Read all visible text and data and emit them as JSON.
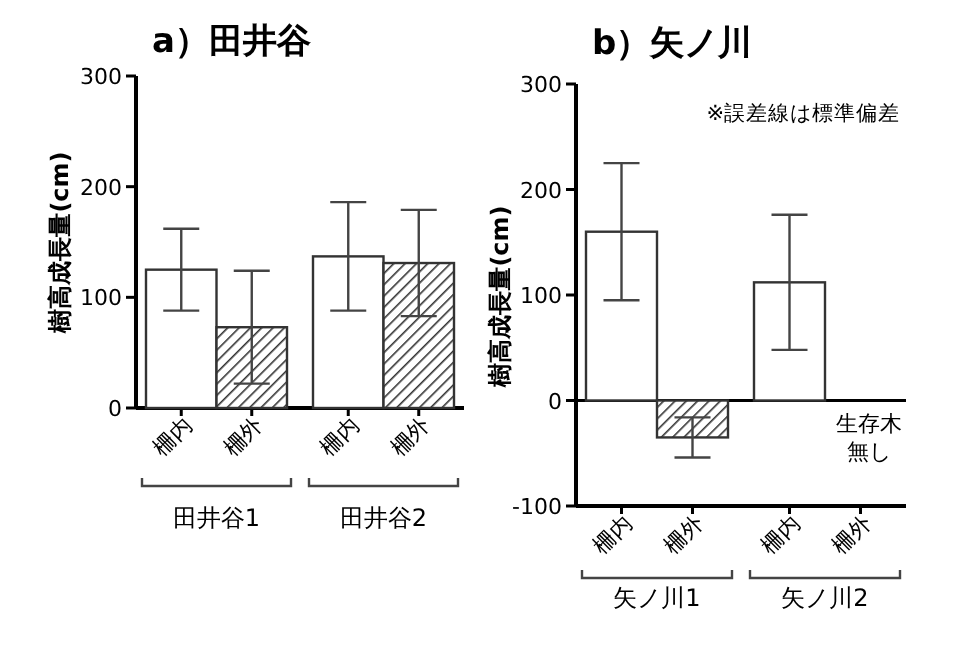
{
  "chart_data": [
    {
      "type": "bar",
      "title": "a）田井谷",
      "ylabel": "樹高成長量(cm)",
      "categories": [
        "柵内",
        "柵外",
        "柵内",
        "柵外"
      ],
      "values": [
        125,
        73,
        137,
        131
      ],
      "errors": [
        37,
        51,
        49,
        48
      ],
      "colors": [
        "#ffffff",
        "#333333",
        "#ffffff",
        "#333333"
      ],
      "ylim": [
        0,
        300
      ],
      "yticks": [
        0,
        100,
        200,
        300
      ],
      "annotations": [
        "田井谷1",
        "田井谷2"
      ]
    },
    {
      "type": "bar",
      "title": "b）矢ノ川",
      "ylabel": "樹高成長量(cm)",
      "categories": [
        "柵内",
        "柵外",
        "柵内",
        "柵外"
      ],
      "values": [
        160,
        -35,
        112,
        null
      ],
      "errors": [
        65,
        19,
        64,
        null
      ],
      "colors": [
        "#ffffff",
        "#333333",
        "#ffffff",
        "#333333"
      ],
      "ylim": [
        -100,
        300
      ],
      "yticks": [
        -100,
        0,
        100,
        200,
        300
      ],
      "ref_lines": [
        {
          "axis": "y",
          "value": 0
        }
      ],
      "annotations": [
        "※誤差線は標準偏差",
        "矢ノ川1",
        "矢ノ川2",
        "生存木無し"
      ]
    }
  ]
}
